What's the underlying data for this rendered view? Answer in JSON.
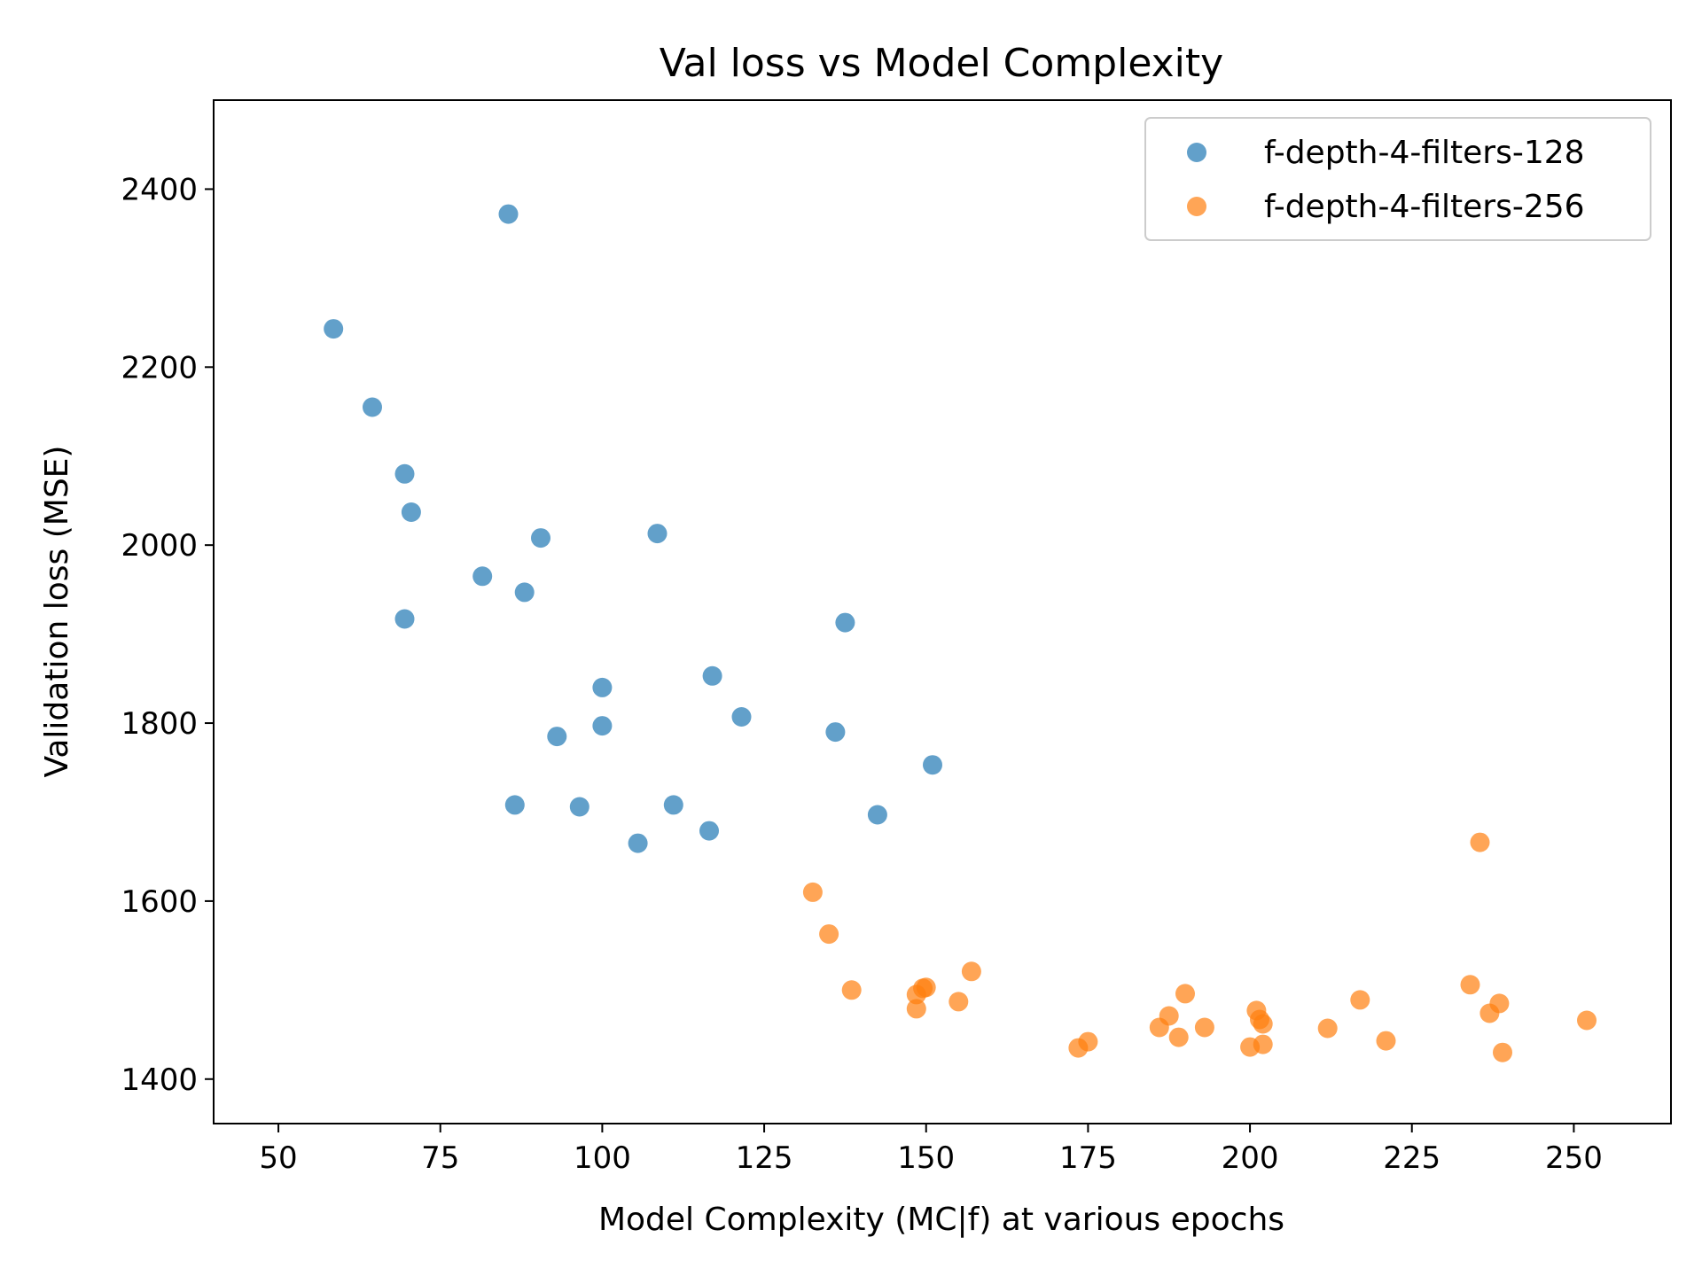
{
  "chart_data": {
    "type": "scatter",
    "title": "Val loss vs Model Complexity",
    "xlabel": "Model Complexity (MC|f) at various epochs",
    "ylabel": "Validation loss (MSE)",
    "xlim": [
      40,
      265
    ],
    "ylim": [
      1350,
      2500
    ],
    "xticks": [
      50,
      75,
      100,
      125,
      150,
      175,
      200,
      225,
      250
    ],
    "yticks": [
      1400,
      1600,
      1800,
      2000,
      2200,
      2400
    ],
    "grid": false,
    "legend_position": "top-right",
    "series": [
      {
        "name": "f-depth-4-filters-128",
        "color": "#1f77b4",
        "points": [
          [
            58.5,
            2243
          ],
          [
            64.5,
            2155
          ],
          [
            69.5,
            2080
          ],
          [
            70.5,
            2037
          ],
          [
            69.5,
            1917
          ],
          [
            81.5,
            1965
          ],
          [
            85.5,
            2372
          ],
          [
            88,
            1947
          ],
          [
            90.5,
            2008
          ],
          [
            93,
            1785
          ],
          [
            86.5,
            1708
          ],
          [
            96.5,
            1706
          ],
          [
            100,
            1840
          ],
          [
            100,
            1797
          ],
          [
            105.5,
            1665
          ],
          [
            108.5,
            2013
          ],
          [
            111,
            1708
          ],
          [
            116.5,
            1679
          ],
          [
            117,
            1853
          ],
          [
            121.5,
            1807
          ],
          [
            136,
            1790
          ],
          [
            137.5,
            1913
          ],
          [
            142.5,
            1697
          ],
          [
            151,
            1753
          ]
        ]
      },
      {
        "name": "f-depth-4-filters-256",
        "color": "#ff7f0e",
        "points": [
          [
            132.5,
            1610
          ],
          [
            135,
            1563
          ],
          [
            138.5,
            1500
          ],
          [
            148.5,
            1495
          ],
          [
            148.5,
            1479
          ],
          [
            149.5,
            1502
          ],
          [
            150,
            1503
          ],
          [
            155,
            1487
          ],
          [
            157,
            1521
          ],
          [
            173.5,
            1435
          ],
          [
            175,
            1442
          ],
          [
            186,
            1458
          ],
          [
            187.5,
            1471
          ],
          [
            189,
            1447
          ],
          [
            190,
            1496
          ],
          [
            193,
            1458
          ],
          [
            200,
            1436
          ],
          [
            201,
            1477
          ],
          [
            201.5,
            1467
          ],
          [
            202,
            1462
          ],
          [
            202,
            1439
          ],
          [
            212,
            1457
          ],
          [
            217,
            1489
          ],
          [
            221,
            1443
          ],
          [
            234,
            1506
          ],
          [
            235.5,
            1666
          ],
          [
            237,
            1474
          ],
          [
            238.5,
            1485
          ],
          [
            239,
            1430
          ],
          [
            252,
            1466
          ]
        ]
      }
    ]
  }
}
